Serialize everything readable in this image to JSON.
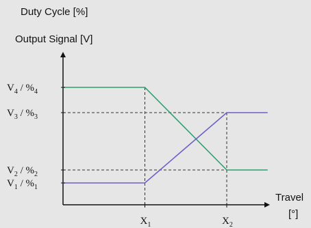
{
  "chart_data": {
    "type": "line",
    "y_axis_titles": [
      "Duty Cycle [%]",
      "Output Signal [V]"
    ],
    "x_axis_title": "Travel",
    "x_axis_unit": "[°]",
    "y_ticks": [
      {
        "main": "V",
        "sub": "4",
        "sep": " / %",
        "sub2": "4",
        "value": 4
      },
      {
        "main": "V",
        "sub": "3",
        "sep": " / %",
        "sub2": "3",
        "value": 3
      },
      {
        "main": "V",
        "sub": "2",
        "sep": " / %",
        "sub2": "2",
        "value": 2
      },
      {
        "main": "V",
        "sub": "1",
        "sep": " / %",
        "sub2": "1",
        "value": 1
      }
    ],
    "x_ticks": [
      {
        "main": "X",
        "sub": "1",
        "value": 1
      },
      {
        "main": "X",
        "sub": "2",
        "value": 2
      }
    ],
    "series": [
      {
        "color": "#2e9e6e",
        "points": [
          [
            0,
            4
          ],
          [
            1,
            4
          ],
          [
            2,
            2
          ],
          [
            2.5,
            2
          ]
        ]
      },
      {
        "color": "#6a5fc8",
        "points": [
          [
            0,
            1
          ],
          [
            1,
            1
          ],
          [
            2,
            3
          ],
          [
            2.5,
            3
          ]
        ]
      }
    ],
    "guides": {
      "color": "#333333",
      "dashed": true
    }
  }
}
